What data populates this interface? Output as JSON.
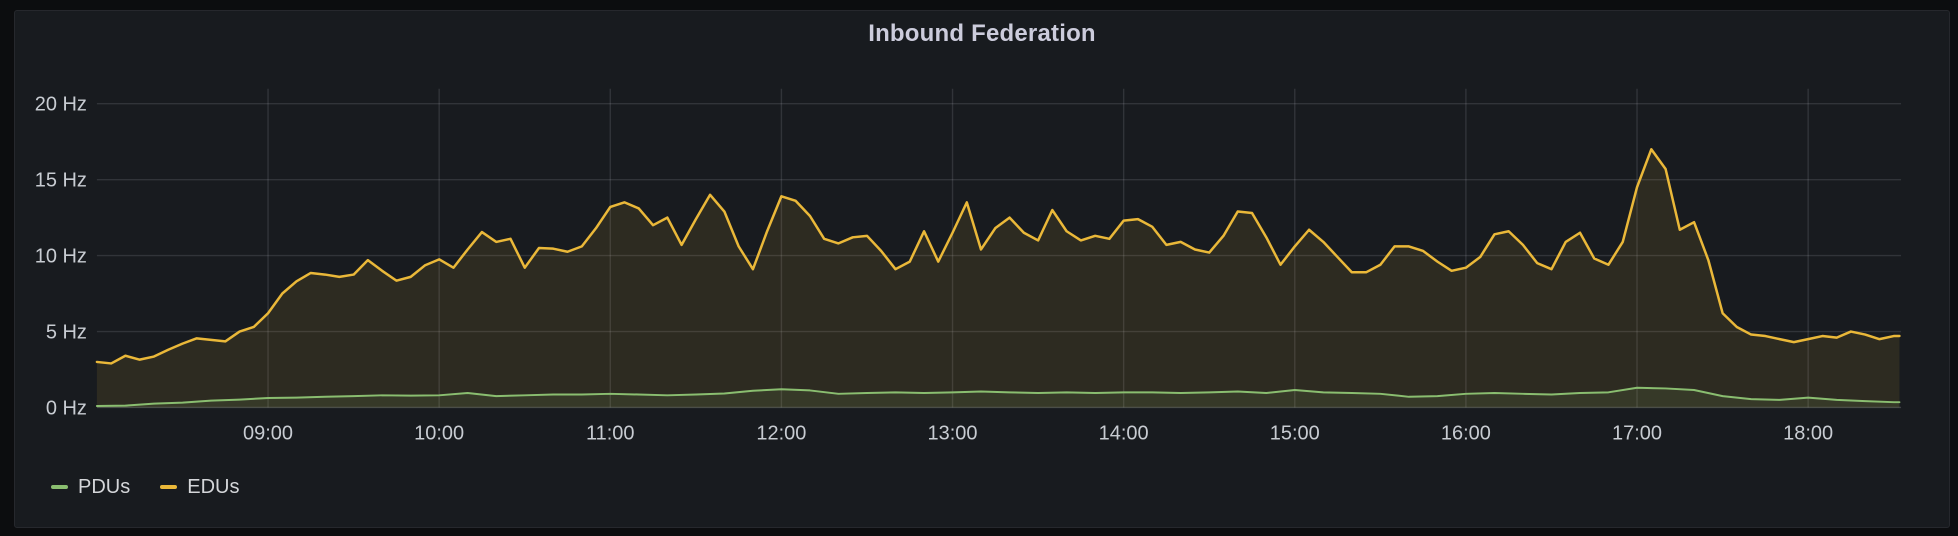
{
  "panel": {
    "title": "Inbound Federation"
  },
  "colors": {
    "page_background": "#0c0d0f",
    "panel_background": "#181b1f",
    "grid": "rgba(204,204,220,0.14)",
    "axis_text": "#c8ccd2",
    "title_text": "#ccccdc",
    "pdus": "#8ABE70",
    "edus": "#EAB839"
  },
  "chart_data": {
    "type": "area",
    "title": "Inbound Federation",
    "unit": "Hz",
    "grid": true,
    "legend_position": "bottom-left",
    "ylim": [
      0,
      21
    ],
    "x_range_hours": [
      8.0,
      18.54
    ],
    "y_ticks": [
      {
        "label": "0 Hz",
        "value": 0
      },
      {
        "label": "5 Hz",
        "value": 5
      },
      {
        "label": "10 Hz",
        "value": 10
      },
      {
        "label": "15 Hz",
        "value": 15
      },
      {
        "label": "20 Hz",
        "value": 20
      }
    ],
    "x_ticks": [
      "09:00",
      "10:00",
      "11:00",
      "12:00",
      "13:00",
      "14:00",
      "15:00",
      "16:00",
      "17:00",
      "18:00"
    ],
    "series": [
      {
        "name": "PDUs",
        "color": "#8ABE70",
        "fill_opacity": 0.1,
        "line_width": 2,
        "points": [
          [
            "08:00",
            0.1
          ],
          [
            "08:10",
            0.12
          ],
          [
            "08:20",
            0.25
          ],
          [
            "08:30",
            0.32
          ],
          [
            "08:40",
            0.45
          ],
          [
            "08:50",
            0.52
          ],
          [
            "09:00",
            0.62
          ],
          [
            "09:10",
            0.65
          ],
          [
            "09:20",
            0.7
          ],
          [
            "09:30",
            0.75
          ],
          [
            "09:40",
            0.8
          ],
          [
            "09:50",
            0.78
          ],
          [
            "10:00",
            0.8
          ],
          [
            "10:10",
            0.95
          ],
          [
            "10:20",
            0.75
          ],
          [
            "10:30",
            0.8
          ],
          [
            "10:40",
            0.85
          ],
          [
            "10:50",
            0.85
          ],
          [
            "11:00",
            0.9
          ],
          [
            "11:10",
            0.85
          ],
          [
            "11:20",
            0.8
          ],
          [
            "11:30",
            0.85
          ],
          [
            "11:40",
            0.92
          ],
          [
            "11:50",
            1.1
          ],
          [
            "12:00",
            1.2
          ],
          [
            "12:10",
            1.12
          ],
          [
            "12:20",
            0.9
          ],
          [
            "12:30",
            0.95
          ],
          [
            "12:40",
            1.0
          ],
          [
            "12:50",
            0.95
          ],
          [
            "13:00",
            1.0
          ],
          [
            "13:10",
            1.05
          ],
          [
            "13:20",
            1.0
          ],
          [
            "13:30",
            0.95
          ],
          [
            "13:40",
            1.0
          ],
          [
            "13:50",
            0.95
          ],
          [
            "14:00",
            1.0
          ],
          [
            "14:10",
            1.0
          ],
          [
            "14:20",
            0.95
          ],
          [
            "14:30",
            1.0
          ],
          [
            "14:40",
            1.05
          ],
          [
            "14:50",
            0.95
          ],
          [
            "15:00",
            1.15
          ],
          [
            "15:10",
            1.0
          ],
          [
            "15:20",
            0.95
          ],
          [
            "15:30",
            0.9
          ],
          [
            "15:40",
            0.7
          ],
          [
            "15:50",
            0.75
          ],
          [
            "16:00",
            0.9
          ],
          [
            "16:10",
            0.95
          ],
          [
            "16:20",
            0.9
          ],
          [
            "16:30",
            0.85
          ],
          [
            "16:40",
            0.95
          ],
          [
            "16:50",
            1.0
          ],
          [
            "17:00",
            1.3
          ],
          [
            "17:10",
            1.25
          ],
          [
            "17:20",
            1.15
          ],
          [
            "17:30",
            0.75
          ],
          [
            "17:40",
            0.55
          ],
          [
            "17:50",
            0.5
          ],
          [
            "18:00",
            0.65
          ],
          [
            "18:10",
            0.5
          ],
          [
            "18:20",
            0.42
          ],
          [
            "18:30",
            0.35
          ],
          [
            "18:32",
            0.35
          ]
        ]
      },
      {
        "name": "EDUs",
        "color": "#EAB839",
        "fill_opacity": 0.1,
        "line_width": 2.5,
        "points": [
          [
            "08:00",
            3.0
          ],
          [
            "08:05",
            2.9
          ],
          [
            "08:10",
            3.4
          ],
          [
            "08:15",
            3.15
          ],
          [
            "08:20",
            3.35
          ],
          [
            "08:25",
            3.8
          ],
          [
            "08:30",
            4.2
          ],
          [
            "08:35",
            4.55
          ],
          [
            "08:40",
            4.45
          ],
          [
            "08:45",
            4.35
          ],
          [
            "08:50",
            5.0
          ],
          [
            "08:55",
            5.3
          ],
          [
            "09:00",
            6.2
          ],
          [
            "09:05",
            7.5
          ],
          [
            "09:10",
            8.3
          ],
          [
            "09:15",
            8.85
          ],
          [
            "09:20",
            8.75
          ],
          [
            "09:25",
            8.6
          ],
          [
            "09:30",
            8.75
          ],
          [
            "09:35",
            9.7
          ],
          [
            "09:40",
            9.0
          ],
          [
            "09:45",
            8.35
          ],
          [
            "09:50",
            8.6
          ],
          [
            "09:55",
            9.35
          ],
          [
            "10:00",
            9.75
          ],
          [
            "10:05",
            9.2
          ],
          [
            "10:10",
            10.4
          ],
          [
            "10:15",
            11.55
          ],
          [
            "10:20",
            10.9
          ],
          [
            "10:25",
            11.1
          ],
          [
            "10:30",
            9.2
          ],
          [
            "10:35",
            10.5
          ],
          [
            "10:40",
            10.45
          ],
          [
            "10:45",
            10.25
          ],
          [
            "10:50",
            10.6
          ],
          [
            "10:55",
            11.8
          ],
          [
            "11:00",
            13.2
          ],
          [
            "11:05",
            13.5
          ],
          [
            "11:10",
            13.1
          ],
          [
            "11:15",
            12.0
          ],
          [
            "11:20",
            12.5
          ],
          [
            "11:25",
            10.7
          ],
          [
            "11:30",
            12.4
          ],
          [
            "11:35",
            14.0
          ],
          [
            "11:40",
            12.9
          ],
          [
            "11:45",
            10.6
          ],
          [
            "11:50",
            9.1
          ],
          [
            "11:55",
            11.6
          ],
          [
            "12:00",
            13.9
          ],
          [
            "12:05",
            13.6
          ],
          [
            "12:10",
            12.6
          ],
          [
            "12:15",
            11.1
          ],
          [
            "12:20",
            10.8
          ],
          [
            "12:25",
            11.2
          ],
          [
            "12:30",
            11.3
          ],
          [
            "12:35",
            10.3
          ],
          [
            "12:40",
            9.1
          ],
          [
            "12:45",
            9.6
          ],
          [
            "12:50",
            11.6
          ],
          [
            "12:55",
            9.6
          ],
          [
            "13:00",
            11.5
          ],
          [
            "13:05",
            13.5
          ],
          [
            "13:10",
            10.4
          ],
          [
            "13:15",
            11.8
          ],
          [
            "13:20",
            12.5
          ],
          [
            "13:25",
            11.5
          ],
          [
            "13:30",
            11.0
          ],
          [
            "13:35",
            13.0
          ],
          [
            "13:40",
            11.6
          ],
          [
            "13:45",
            11.0
          ],
          [
            "13:50",
            11.3
          ],
          [
            "13:55",
            11.1
          ],
          [
            "14:00",
            12.3
          ],
          [
            "14:05",
            12.4
          ],
          [
            "14:10",
            11.9
          ],
          [
            "14:15",
            10.7
          ],
          [
            "14:20",
            10.9
          ],
          [
            "14:25",
            10.4
          ],
          [
            "14:30",
            10.2
          ],
          [
            "14:35",
            11.3
          ],
          [
            "14:40",
            12.9
          ],
          [
            "14:45",
            12.8
          ],
          [
            "14:50",
            11.2
          ],
          [
            "14:55",
            9.4
          ],
          [
            "15:00",
            10.6
          ],
          [
            "15:05",
            11.7
          ],
          [
            "15:10",
            10.9
          ],
          [
            "15:15",
            9.9
          ],
          [
            "15:20",
            8.9
          ],
          [
            "15:25",
            8.9
          ],
          [
            "15:30",
            9.4
          ],
          [
            "15:35",
            10.6
          ],
          [
            "15:40",
            10.6
          ],
          [
            "15:45",
            10.3
          ],
          [
            "15:50",
            9.6
          ],
          [
            "15:55",
            9.0
          ],
          [
            "16:00",
            9.2
          ],
          [
            "16:05",
            9.9
          ],
          [
            "16:10",
            11.4
          ],
          [
            "16:15",
            11.6
          ],
          [
            "16:20",
            10.7
          ],
          [
            "16:25",
            9.5
          ],
          [
            "16:30",
            9.1
          ],
          [
            "16:35",
            10.9
          ],
          [
            "16:40",
            11.5
          ],
          [
            "16:45",
            9.8
          ],
          [
            "16:50",
            9.4
          ],
          [
            "16:55",
            10.9
          ],
          [
            "17:00",
            14.5
          ],
          [
            "17:05",
            17.0
          ],
          [
            "17:10",
            15.7
          ],
          [
            "17:15",
            11.7
          ],
          [
            "17:20",
            12.2
          ],
          [
            "17:25",
            9.7
          ],
          [
            "17:30",
            6.2
          ],
          [
            "17:35",
            5.3
          ],
          [
            "17:40",
            4.8
          ],
          [
            "17:45",
            4.7
          ],
          [
            "17:50",
            4.5
          ],
          [
            "17:55",
            4.3
          ],
          [
            "18:00",
            4.5
          ],
          [
            "18:05",
            4.7
          ],
          [
            "18:10",
            4.6
          ],
          [
            "18:15",
            5.0
          ],
          [
            "18:20",
            4.8
          ],
          [
            "18:25",
            4.5
          ],
          [
            "18:30",
            4.7
          ],
          [
            "18:32",
            4.7
          ]
        ]
      }
    ]
  }
}
